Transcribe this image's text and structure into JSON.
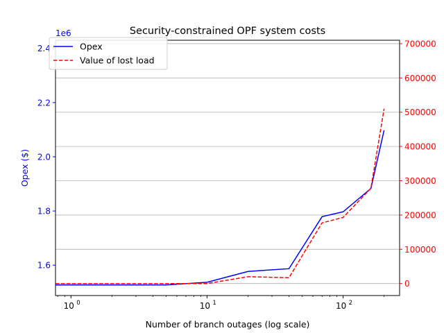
{
  "chart_data": {
    "type": "line",
    "title": "Security-constrained OPF system costs",
    "xlabel": "Number of branch outages (log scale)",
    "xscale": "log",
    "xlim": [
      0.77,
      260
    ],
    "x_ticks": [
      {
        "value": 1,
        "base": "10",
        "exp": "0"
      },
      {
        "value": 10,
        "base": "10",
        "exp": "1"
      },
      {
        "value": 100,
        "base": "10",
        "exp": "2"
      }
    ],
    "x": [
      0.77,
      5,
      10,
      20,
      40,
      70,
      100,
      160,
      200
    ],
    "y_left": {
      "label": "Opex ($)",
      "color": "#0000ff",
      "lim": [
        1.488,
        2.43
      ],
      "offset_text": "1e6",
      "ticks": [
        {
          "value": 1.6,
          "label": "1.6"
        },
        {
          "value": 1.8,
          "label": "1.8"
        },
        {
          "value": 2.0,
          "label": "2.0"
        },
        {
          "value": 2.2,
          "label": "2.2"
        },
        {
          "value": 2.4,
          "label": "2.4"
        }
      ]
    },
    "y_right": {
      "color": "#ff0000",
      "lim": [
        -35000,
        710000
      ],
      "ticks": [
        {
          "value": 0,
          "label": "0"
        },
        {
          "value": 100000,
          "label": "100000"
        },
        {
          "value": 200000,
          "label": "200000"
        },
        {
          "value": 300000,
          "label": "300000"
        },
        {
          "value": 400000,
          "label": "400000"
        },
        {
          "value": 500000,
          "label": "500000"
        },
        {
          "value": 600000,
          "label": "600000"
        },
        {
          "value": 700000,
          "label": "700000"
        }
      ]
    },
    "grid": "horizontal on right axis",
    "legend_position": "top-left",
    "series": [
      {
        "name": "Opex",
        "axis": "left",
        "color": "#0000ff",
        "style": "solid",
        "values": [
          1.527,
          1.527,
          1.537,
          1.577,
          1.587,
          1.779,
          1.797,
          1.883,
          2.098
        ]
      },
      {
        "name": "Value of lost load",
        "axis": "right",
        "color": "#ff0000",
        "style": "dashed",
        "values": [
          0,
          0,
          0,
          20000,
          17000,
          177000,
          193000,
          278000,
          510000
        ]
      }
    ]
  }
}
